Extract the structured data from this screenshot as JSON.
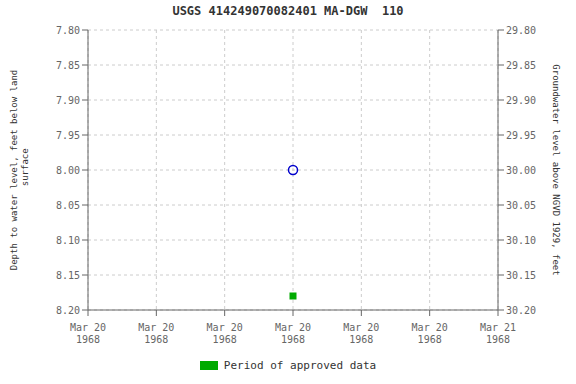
{
  "chart_data": {
    "type": "scatter",
    "title": "USGS 414249070082401 MA-DGW  110",
    "y_label": "Depth to water level, feet below land\n surface",
    "y2_label": "Groundwater level above NGVD 1929, feet",
    "categories": [
      "Mar 20\n1968",
      "Mar 20\n1968",
      "Mar 20\n1968",
      "Mar 20\n1968",
      "Mar 20\n1968",
      "Mar 20\n1968",
      "Mar 21\n1968"
    ],
    "series": [
      {
        "color": "#0000cc",
        "marker": "circle",
        "line_style": "none",
        "values": [
          null,
          null,
          null,
          8.0,
          null,
          null,
          null
        ]
      },
      {
        "name": "Period of approved data",
        "color": "#00aa00",
        "marker": "square",
        "line_style": "none",
        "values": [
          null,
          null,
          null,
          8.18,
          null,
          null,
          null
        ]
      }
    ],
    "ylim": [
      8.2,
      7.8
    ],
    "yticks": [
      {
        "value": 7.8,
        "label": "7.80"
      },
      7.85,
      {
        "value": 7.9,
        "label": "7.90"
      },
      7.95,
      {
        "value": 8.0,
        "label": "8.00"
      },
      8.05,
      {
        "value": 8.1,
        "label": "8.10"
      },
      8.15,
      {
        "value": 8.2,
        "label": "8.20"
      }
    ],
    "y2lim": [
      30.2,
      29.8
    ],
    "y2ticks": [
      {
        "value": 30.2,
        "label": "30.20"
      },
      30.15,
      {
        "value": 30.1,
        "label": "30.10"
      },
      30.05,
      {
        "value": 30.0,
        "label": "30.00"
      },
      29.95,
      {
        "value": 29.9,
        "label": "29.90"
      },
      29.85,
      {
        "value": 29.8,
        "label": "29.80"
      }
    ],
    "grid": true,
    "legend": "bottom"
  }
}
